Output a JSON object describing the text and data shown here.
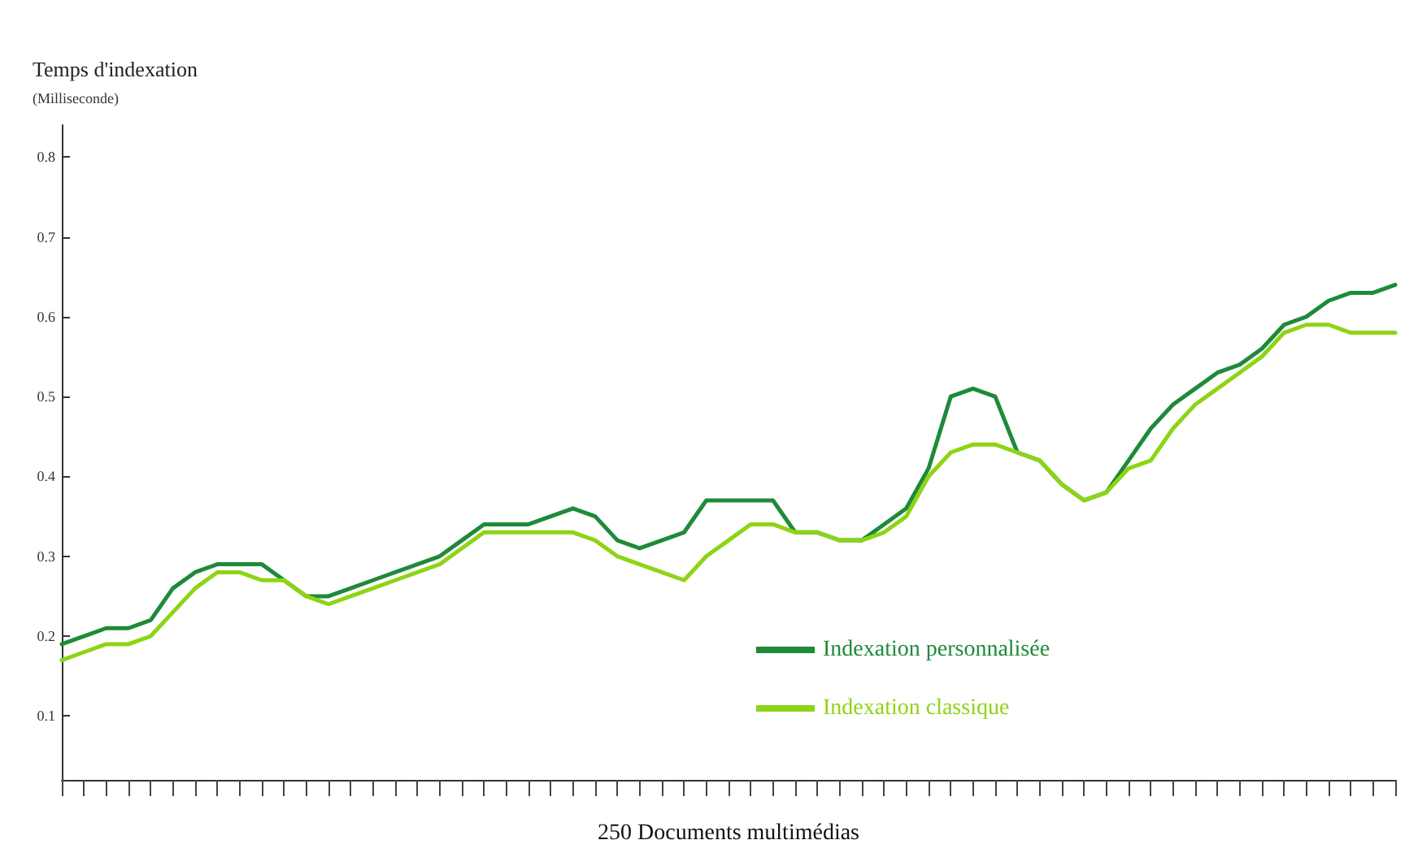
{
  "chart_data": {
    "type": "line",
    "ylabel": "Temps d'indexation\n(Milliseconde)",
    "xlabel": "250 Documents multimédias",
    "categories": [
      null,
      null,
      null,
      null,
      null,
      null,
      null,
      null,
      null,
      null,
      null,
      null,
      null,
      null,
      null,
      null,
      null,
      null,
      null,
      null,
      null,
      null,
      null,
      null,
      null,
      null,
      null,
      null,
      null,
      null,
      null,
      null,
      null,
      null,
      null,
      null,
      null,
      null,
      null,
      null,
      null,
      null,
      null,
      null,
      null,
      null,
      null,
      null,
      null,
      null,
      null,
      null,
      null,
      null,
      null,
      null,
      null,
      null,
      null,
      null,
      null
    ],
    "series": [
      {
        "name": "Indexation personnalisée",
        "color": "#1e8a3a",
        "values": [
          0.19,
          0.2,
          0.21,
          0.21,
          0.22,
          0.26,
          0.28,
          0.29,
          0.29,
          0.29,
          0.27,
          0.25,
          0.25,
          0.26,
          0.27,
          0.28,
          0.29,
          0.3,
          0.32,
          0.34,
          0.34,
          0.34,
          0.35,
          0.36,
          0.35,
          0.32,
          0.31,
          0.32,
          0.33,
          0.37,
          0.37,
          0.37,
          0.37,
          0.33,
          0.33,
          0.32,
          0.32,
          0.34,
          0.36,
          0.41,
          0.5,
          0.51,
          0.5,
          0.43,
          0.42,
          0.39,
          0.37,
          0.38,
          0.42,
          0.46,
          0.49,
          0.51,
          0.53,
          0.54,
          0.56,
          0.59,
          0.6,
          0.62,
          0.63,
          0.63,
          0.64
        ]
      },
      {
        "name": "Indexation classique",
        "color": "#8ed414",
        "values": [
          0.17,
          0.18,
          0.19,
          0.19,
          0.2,
          0.23,
          0.26,
          0.28,
          0.28,
          0.27,
          0.27,
          0.25,
          0.24,
          0.25,
          0.26,
          0.27,
          0.28,
          0.29,
          0.31,
          0.33,
          0.33,
          0.33,
          0.33,
          0.33,
          0.32,
          0.3,
          0.29,
          0.28,
          0.27,
          0.3,
          0.32,
          0.34,
          0.34,
          0.33,
          0.33,
          0.32,
          0.32,
          0.33,
          0.35,
          0.4,
          0.43,
          0.44,
          0.44,
          0.43,
          0.42,
          0.39,
          0.37,
          0.38,
          0.41,
          0.42,
          0.46,
          0.49,
          0.51,
          0.53,
          0.55,
          0.58,
          0.59,
          0.59,
          0.58,
          0.58,
          0.58
        ]
      }
    ],
    "ylim": [
      0.02,
      0.84
    ],
    "yticks": [
      0.1,
      0.2,
      0.3,
      0.4,
      0.5,
      0.6,
      0.7,
      0.8
    ],
    "grid": false,
    "legend": "bottom right",
    "marker": "none",
    "line_style": "solid"
  }
}
